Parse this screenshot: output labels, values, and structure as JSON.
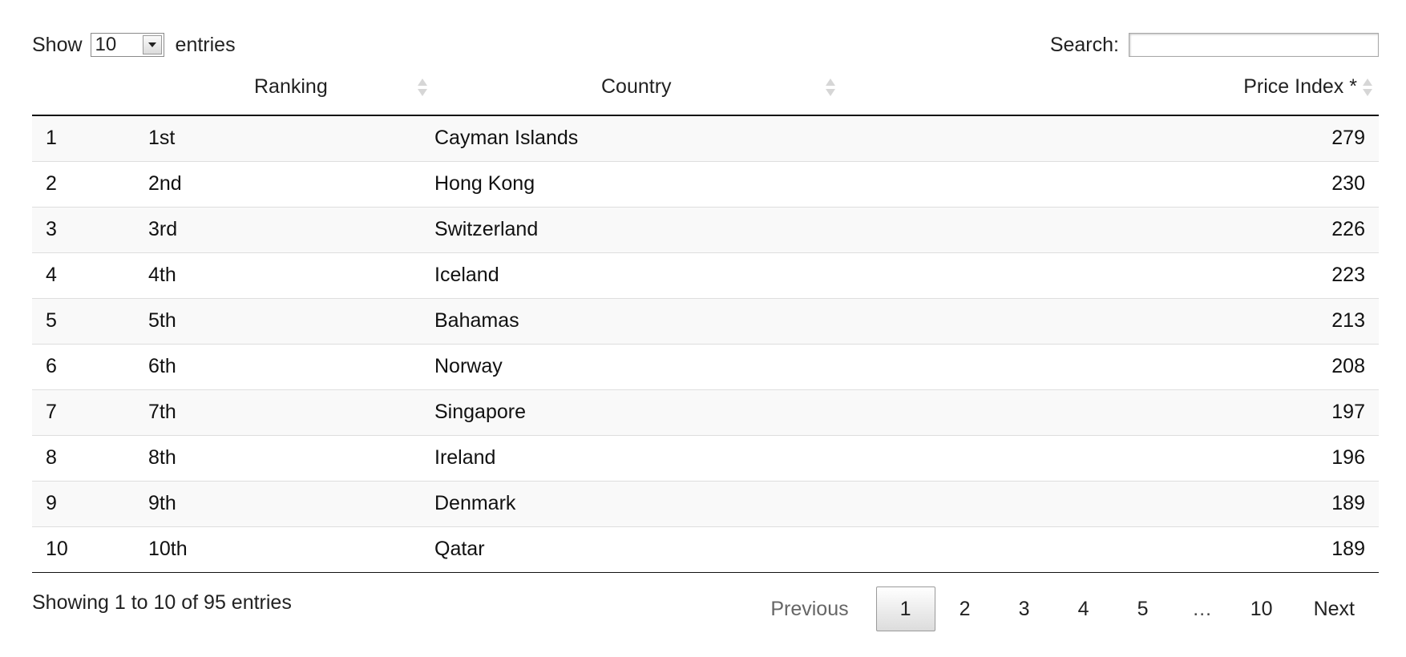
{
  "length_control": {
    "show_label": "Show",
    "selected": "10",
    "entries_label": "entries"
  },
  "search": {
    "label": "Search:",
    "value": ""
  },
  "table": {
    "columns": [
      "",
      "Ranking",
      "Country",
      "Price Index *"
    ],
    "rows": [
      [
        "1",
        "1st",
        "Cayman Islands",
        "279"
      ],
      [
        "2",
        "2nd",
        "Hong Kong",
        "230"
      ],
      [
        "3",
        "3rd",
        "Switzerland",
        "226"
      ],
      [
        "4",
        "4th",
        "Iceland",
        "223"
      ],
      [
        "5",
        "5th",
        "Bahamas",
        "213"
      ],
      [
        "6",
        "6th",
        "Norway",
        "208"
      ],
      [
        "7",
        "7th",
        "Singapore",
        "197"
      ],
      [
        "8",
        "8th",
        "Ireland",
        "196"
      ],
      [
        "9",
        "9th",
        "Denmark",
        "189"
      ],
      [
        "10",
        "10th",
        "Qatar",
        "189"
      ]
    ]
  },
  "info": "Showing 1 to 10 of 95 entries",
  "pagination": {
    "previous": "Previous",
    "pages": [
      "1",
      "2",
      "3",
      "4",
      "5"
    ],
    "ellipsis": "…",
    "last": "10",
    "next": "Next",
    "current": "1"
  }
}
